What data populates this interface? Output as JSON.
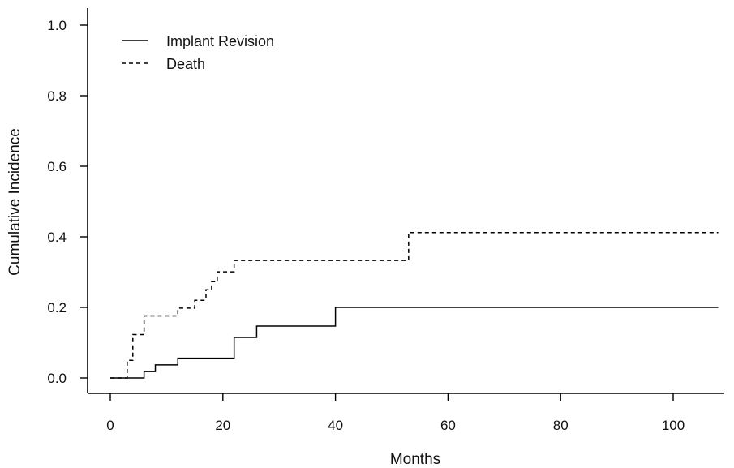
{
  "chart_data": {
    "type": "line",
    "step": true,
    "xlabel": "Months",
    "ylabel": "Cumulative Incidence",
    "xlim": [
      0,
      108
    ],
    "ylim": [
      0,
      1.0
    ],
    "xticks": [
      "0",
      "20",
      "40",
      "60",
      "80",
      "100"
    ],
    "yticks": [
      "0.0",
      "0.2",
      "0.4",
      "0.6",
      "0.8",
      "1.0"
    ],
    "grid": false,
    "legend_position": "top-left",
    "series": [
      {
        "name": "Implant Revision",
        "style": "solid",
        "x": [
          0,
          6,
          8,
          12,
          22,
          26,
          40,
          108
        ],
        "y": [
          0.0,
          0.018,
          0.037,
          0.056,
          0.115,
          0.147,
          0.2,
          0.2
        ]
      },
      {
        "name": "Death",
        "style": "dashed",
        "x": [
          0,
          3,
          4,
          6,
          12,
          15,
          17,
          18,
          19,
          22,
          25,
          53,
          108
        ],
        "y": [
          0.0,
          0.05,
          0.123,
          0.176,
          0.198,
          0.22,
          0.25,
          0.273,
          0.301,
          0.333,
          0.333,
          0.412,
          0.412
        ]
      }
    ]
  }
}
